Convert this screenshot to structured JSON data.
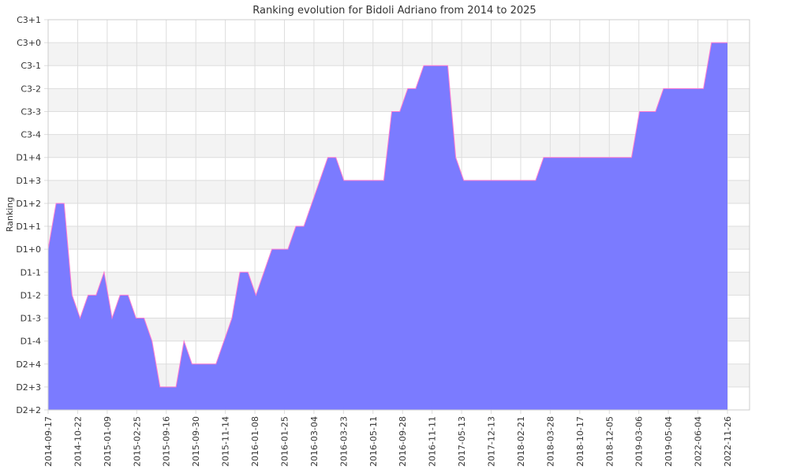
{
  "chart_data": {
    "type": "area",
    "title": "Ranking evolution for Bidoli Adriano from 2014 to 2025",
    "xlabel": "",
    "ylabel": "Ranking",
    "y_ticks": [
      "D2+2",
      "D2+3",
      "D2+4",
      "D1-4",
      "D1-3",
      "D1-2",
      "D1-1",
      "D1+0",
      "D1+1",
      "D1+2",
      "D1+3",
      "D1+4",
      "C3-4",
      "C3-3",
      "C3-2",
      "C3-1",
      "C3+0",
      "C3+1"
    ],
    "x_ticks": [
      "2014-09-17",
      "2014-10-22",
      "2015-01-09",
      "2015-02-25",
      "2015-09-16",
      "2015-09-30",
      "2015-11-14",
      "2016-01-08",
      "2016-01-25",
      "2016-03-04",
      "2016-03-23",
      "2016-05-11",
      "2016-09-28",
      "2016-11-11",
      "2017-05-13",
      "2017-12-13",
      "2018-02-21",
      "2018-03-28",
      "2018-10-17",
      "2018-12-05",
      "2019-03-06",
      "2019-05-04",
      "2022-06-04",
      "2022-11-26"
    ],
    "grid": true,
    "colors": {
      "fill": "#7b7bff",
      "line": "#ff7bd0",
      "band": "#f3f3f3",
      "grid": "#dddddd"
    },
    "series": [
      {
        "values": [
          7,
          9,
          9,
          5,
          4,
          5,
          5,
          6,
          4,
          5,
          5,
          4,
          4,
          3,
          1,
          1,
          1,
          3,
          2,
          2,
          2,
          2,
          3,
          4,
          6,
          6,
          5,
          6,
          7,
          7,
          7,
          8,
          8,
          9,
          10,
          11,
          11,
          10,
          10,
          10,
          10,
          10,
          10,
          13,
          13,
          14,
          14,
          15,
          15,
          15,
          15,
          11,
          10,
          10,
          10,
          10,
          10,
          10,
          10,
          10,
          10,
          10,
          11,
          11,
          11,
          11,
          11,
          11,
          11,
          11,
          11,
          11,
          11,
          11,
          13,
          13,
          13,
          14,
          14,
          14,
          14,
          14,
          14,
          16,
          16,
          16
        ]
      }
    ]
  }
}
